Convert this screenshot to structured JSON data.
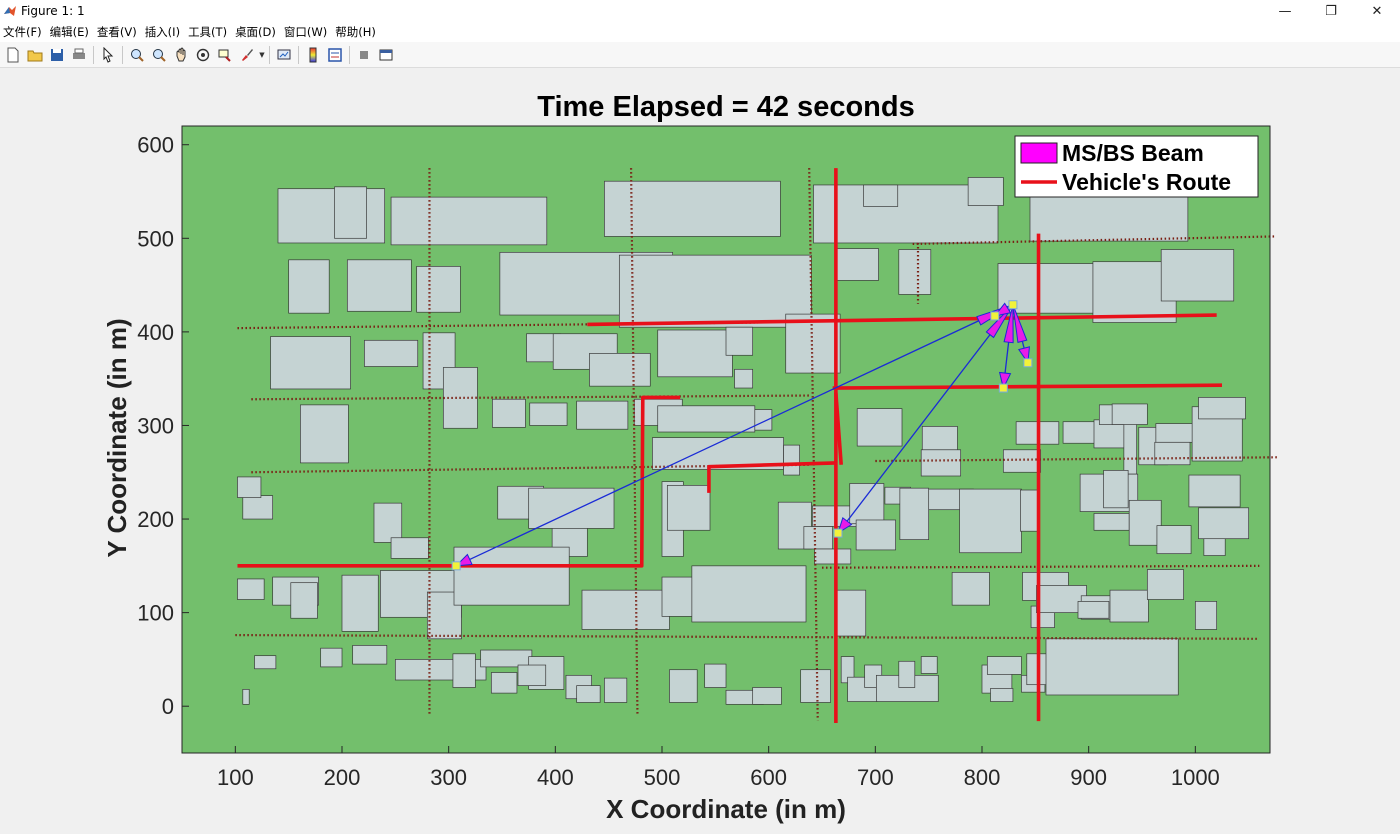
{
  "window": {
    "title": "Figure 1: 1",
    "controls": {
      "minimize": "—",
      "restore": "❐",
      "close": "✕"
    }
  },
  "menu": {
    "items": [
      "文件(F)",
      "编辑(E)",
      "查看(V)",
      "插入(I)",
      "工具(T)",
      "桌面(D)",
      "窗口(W)",
      "帮助(H)"
    ]
  },
  "toolbar": {
    "icons": [
      "new-figure-icon",
      "open-file-icon",
      "save-icon",
      "print-icon",
      "select-pointer-icon",
      "zoom-in-icon",
      "zoom-out-icon",
      "pan-hand-icon",
      "rotate-3d-icon",
      "data-cursor-icon",
      "brush-icon",
      "link-plot-icon",
      "colorbar-icon",
      "legend-icon",
      "hide-tools-icon",
      "dock-icon"
    ]
  },
  "colors": {
    "ground": "#73bf6c",
    "building": "#c5d3d3",
    "route": "#e8101a",
    "beam_line": "#1a2bd6",
    "beam_fill": "#e81be8",
    "dotted_road": "#7a1f14",
    "node": "#f2f23a"
  },
  "chart_data": {
    "type": "scatter",
    "title": "Time Elapsed = 42 seconds",
    "xlabel": "X Coordinate (in m)",
    "ylabel": "Y Coordinate (in m)",
    "xlim": [
      50,
      1070
    ],
    "ylim": [
      -50,
      620
    ],
    "xticks": [
      100,
      200,
      300,
      400,
      500,
      600,
      700,
      800,
      900,
      1000
    ],
    "yticks": [
      0,
      100,
      200,
      300,
      400,
      500,
      600
    ],
    "grid": false,
    "legend": {
      "placement": "top-right",
      "entries": [
        {
          "name": "MS/BS Beam",
          "kind": "patch",
          "color": "#ff00ff"
        },
        {
          "name": "Vehicle's Route",
          "kind": "line",
          "color": "#e8101a"
        }
      ]
    },
    "base_station": {
      "x": 829,
      "y": 429
    },
    "mobile_stations": [
      {
        "x": 307,
        "y": 150
      },
      {
        "x": 665,
        "y": 185
      },
      {
        "x": 820,
        "y": 340
      },
      {
        "x": 843,
        "y": 367
      },
      {
        "x": 812,
        "y": 417
      }
    ],
    "vehicle_routes": [
      [
        [
          102,
          150
        ],
        [
          481,
          150
        ],
        [
          482,
          330
        ],
        [
          517,
          330
        ]
      ],
      [
        [
          430,
          408
        ],
        [
          1020,
          418
        ]
      ],
      [
        [
          660,
          340
        ],
        [
          1025,
          343
        ]
      ],
      [
        [
          544,
          228
        ],
        [
          544,
          256
        ],
        [
          663,
          260
        ]
      ],
      [
        [
          663,
          575
        ],
        [
          663,
          -18
        ]
      ],
      [
        [
          663,
          335
        ],
        [
          668,
          258
        ]
      ],
      [
        [
          853,
          505
        ],
        [
          853,
          -16
        ]
      ]
    ],
    "dotted_roads": [
      [
        [
          102,
          404
        ],
        [
          590,
          410
        ]
      ],
      [
        [
          115,
          328
        ],
        [
          640,
          332
        ]
      ],
      [
        [
          115,
          250
        ],
        [
          640,
          258
        ]
      ],
      [
        [
          650,
          148
        ],
        [
          1060,
          150
        ]
      ],
      [
        [
          100,
          76
        ],
        [
          1060,
          72
        ]
      ],
      [
        [
          735,
          494
        ],
        [
          1075,
          502
        ]
      ],
      [
        [
          700,
          262
        ],
        [
          1077,
          266
        ]
      ],
      [
        [
          282,
          575
        ],
        [
          282,
          -10
        ]
      ],
      [
        [
          471,
          575
        ],
        [
          477,
          -10
        ]
      ],
      [
        [
          638,
          575
        ],
        [
          646,
          -15
        ]
      ],
      [
        [
          740,
          495
        ],
        [
          740,
          430
        ]
      ]
    ],
    "buildings": [
      [
        140,
        495,
        100,
        58
      ],
      [
        193,
        500,
        30,
        55
      ],
      [
        246,
        493,
        146,
        51
      ],
      [
        446,
        502,
        165,
        59
      ],
      [
        642,
        495,
        173,
        62
      ],
      [
        689,
        534,
        32,
        23
      ],
      [
        787,
        535,
        33,
        30
      ],
      [
        845,
        497,
        148,
        53
      ],
      [
        150,
        420,
        38,
        57
      ],
      [
        205,
        422,
        60,
        55
      ],
      [
        270,
        421,
        41,
        49
      ],
      [
        348,
        418,
        162,
        67
      ],
      [
        460,
        405,
        180,
        77
      ],
      [
        663,
        455,
        40,
        34
      ],
      [
        722,
        440,
        30,
        48
      ],
      [
        815,
        420,
        92,
        53
      ],
      [
        904,
        410,
        78,
        65
      ],
      [
        968,
        433,
        68,
        55
      ],
      [
        133,
        339,
        75,
        56
      ],
      [
        221,
        363,
        50,
        28
      ],
      [
        276,
        339,
        30,
        60
      ],
      [
        373,
        368,
        32,
        30
      ],
      [
        398,
        360,
        60,
        38
      ],
      [
        432,
        342,
        57,
        35
      ],
      [
        496,
        352,
        70,
        50
      ],
      [
        560,
        375,
        25,
        30
      ],
      [
        616,
        356,
        51,
        63
      ],
      [
        568,
        340,
        17,
        20
      ],
      [
        161,
        260,
        45,
        62
      ],
      [
        295,
        297,
        32,
        65
      ],
      [
        341,
        298,
        31,
        30
      ],
      [
        376,
        300,
        35,
        24
      ],
      [
        420,
        296,
        48,
        30
      ],
      [
        474,
        300,
        45,
        28
      ],
      [
        500,
        295,
        103,
        22
      ],
      [
        496,
        293,
        91,
        28
      ],
      [
        491,
        253,
        123,
        34
      ],
      [
        614,
        247,
        15,
        32
      ],
      [
        683,
        278,
        42,
        40
      ],
      [
        744,
        274,
        33,
        25
      ],
      [
        743,
        246,
        37,
        28
      ],
      [
        820,
        250,
        35,
        24
      ],
      [
        832,
        280,
        40,
        24
      ],
      [
        876,
        281,
        34,
        23
      ],
      [
        905,
        276,
        39,
        30
      ],
      [
        910,
        301,
        31,
        21
      ],
      [
        947,
        258,
        27,
        40
      ],
      [
        933,
        248,
        12,
        55
      ],
      [
        922,
        301,
        33,
        22
      ],
      [
        963,
        282,
        40,
        20
      ],
      [
        962,
        258,
        33,
        24
      ],
      [
        997,
        262,
        47,
        58
      ],
      [
        1003,
        307,
        44,
        23
      ],
      [
        107,
        200,
        28,
        25
      ],
      [
        102,
        223,
        22,
        22
      ],
      [
        230,
        175,
        26,
        42
      ],
      [
        246,
        158,
        35,
        22
      ],
      [
        346,
        200,
        43,
        35
      ],
      [
        397,
        160,
        33,
        38
      ],
      [
        375,
        190,
        80,
        43
      ],
      [
        500,
        160,
        20,
        80
      ],
      [
        505,
        188,
        40,
        48
      ],
      [
        609,
        168,
        31,
        50
      ],
      [
        641,
        192,
        43,
        22
      ],
      [
        633,
        168,
        27,
        24
      ],
      [
        643,
        152,
        34,
        16
      ],
      [
        709,
        216,
        24,
        18
      ],
      [
        740,
        210,
        52,
        22
      ],
      [
        676,
        195,
        32,
        43
      ],
      [
        682,
        167,
        37,
        32
      ],
      [
        723,
        178,
        27,
        55
      ],
      [
        779,
        164,
        58,
        68
      ],
      [
        836,
        187,
        18,
        44
      ],
      [
        892,
        208,
        54,
        40
      ],
      [
        905,
        188,
        33,
        18
      ],
      [
        914,
        212,
        23,
        40
      ],
      [
        938,
        172,
        30,
        48
      ],
      [
        994,
        213,
        48,
        34
      ],
      [
        964,
        163,
        32,
        30
      ],
      [
        1008,
        161,
        20,
        50
      ],
      [
        1003,
        179,
        47,
        33
      ],
      [
        102,
        114,
        25,
        22
      ],
      [
        135,
        108,
        43,
        30
      ],
      [
        152,
        94,
        25,
        38
      ],
      [
        200,
        80,
        34,
        60
      ],
      [
        236,
        95,
        76,
        50
      ],
      [
        280,
        72,
        32,
        50
      ],
      [
        305,
        108,
        108,
        62
      ],
      [
        425,
        82,
        82,
        42
      ],
      [
        500,
        96,
        36,
        42
      ],
      [
        528,
        90,
        107,
        60
      ],
      [
        663,
        75,
        28,
        49
      ],
      [
        772,
        108,
        35,
        35
      ],
      [
        838,
        113,
        43,
        30
      ],
      [
        846,
        84,
        22,
        23
      ],
      [
        851,
        100,
        47,
        29
      ],
      [
        893,
        93,
        37,
        25
      ],
      [
        890,
        94,
        29,
        18
      ],
      [
        920,
        90,
        36,
        34
      ],
      [
        955,
        114,
        34,
        32
      ],
      [
        1000,
        82,
        20,
        30
      ],
      [
        118,
        40,
        20,
        14
      ],
      [
        180,
        42,
        20,
        20
      ],
      [
        210,
        45,
        32,
        20
      ],
      [
        250,
        28,
        85,
        22
      ],
      [
        304,
        20,
        21,
        36
      ],
      [
        330,
        42,
        48,
        18
      ],
      [
        375,
        18,
        33,
        35
      ],
      [
        340,
        14,
        24,
        22
      ],
      [
        365,
        22,
        26,
        22
      ],
      [
        410,
        8,
        24,
        25
      ],
      [
        420,
        4,
        22,
        18
      ],
      [
        446,
        4,
        21,
        26
      ],
      [
        507,
        4,
        26,
        35
      ],
      [
        540,
        20,
        20,
        25
      ],
      [
        560,
        2,
        35,
        15
      ],
      [
        585,
        2,
        27,
        18
      ],
      [
        630,
        4,
        28,
        35
      ],
      [
        668,
        25,
        12,
        28
      ],
      [
        674,
        5,
        28,
        26
      ],
      [
        690,
        20,
        16,
        24
      ],
      [
        701,
        5,
        58,
        28
      ],
      [
        722,
        20,
        15,
        28
      ],
      [
        743,
        35,
        15,
        18
      ],
      [
        800,
        14,
        28,
        30
      ],
      [
        837,
        15,
        22,
        18
      ],
      [
        842,
        23,
        21,
        33
      ],
      [
        805,
        34,
        32,
        19
      ],
      [
        860,
        12,
        124,
        60
      ],
      [
        808,
        5,
        21,
        14
      ],
      [
        107,
        2,
        6,
        16
      ]
    ]
  }
}
